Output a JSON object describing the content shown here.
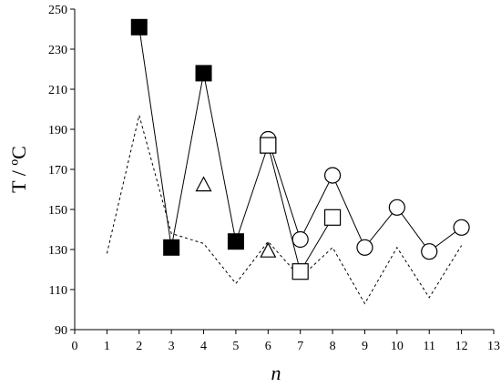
{
  "chart_data": {
    "type": "scatter",
    "xlabel": "n",
    "ylabel": "T / ºC",
    "xlim": [
      0,
      13
    ],
    "ylim": [
      90,
      250
    ],
    "x_ticks": [
      0,
      1,
      2,
      3,
      4,
      5,
      6,
      7,
      8,
      9,
      10,
      11,
      12,
      13
    ],
    "y_ticks": [
      90,
      110,
      130,
      150,
      170,
      190,
      210,
      230,
      250
    ],
    "grid": false,
    "legend": "none",
    "series": [
      {
        "marker": "filled-square",
        "line": "solid",
        "color": "#000000",
        "points": [
          [
            2,
            241
          ],
          [
            3,
            131
          ],
          [
            4,
            218
          ],
          [
            5,
            134
          ],
          [
            6,
            182
          ]
        ]
      },
      {
        "marker": "open-circle",
        "line": "solid",
        "color": "#000000",
        "points": [
          [
            6,
            185
          ],
          [
            7,
            135
          ],
          [
            8,
            167
          ],
          [
            9,
            131
          ],
          [
            10,
            151
          ],
          [
            11,
            129
          ],
          [
            12,
            141
          ]
        ]
      },
      {
        "marker": "open-square",
        "line": "solid",
        "color": "#000000",
        "points": [
          [
            6,
            182
          ],
          [
            7,
            119
          ],
          [
            8,
            146
          ]
        ]
      },
      {
        "marker": "open-triangle",
        "line": "none",
        "color": "#000000",
        "points": [
          [
            4,
            162
          ],
          [
            6,
            129
          ]
        ]
      },
      {
        "marker": "none",
        "line": "dashed",
        "color": "#000000",
        "points": [
          [
            1,
            128
          ],
          [
            2,
            197
          ],
          [
            3,
            138
          ],
          [
            4,
            133
          ],
          [
            5,
            113
          ],
          [
            6,
            134
          ],
          [
            7,
            116
          ],
          [
            8,
            131
          ],
          [
            9,
            103
          ],
          [
            10,
            131
          ],
          [
            11,
            106
          ],
          [
            12,
            132
          ]
        ]
      }
    ]
  }
}
